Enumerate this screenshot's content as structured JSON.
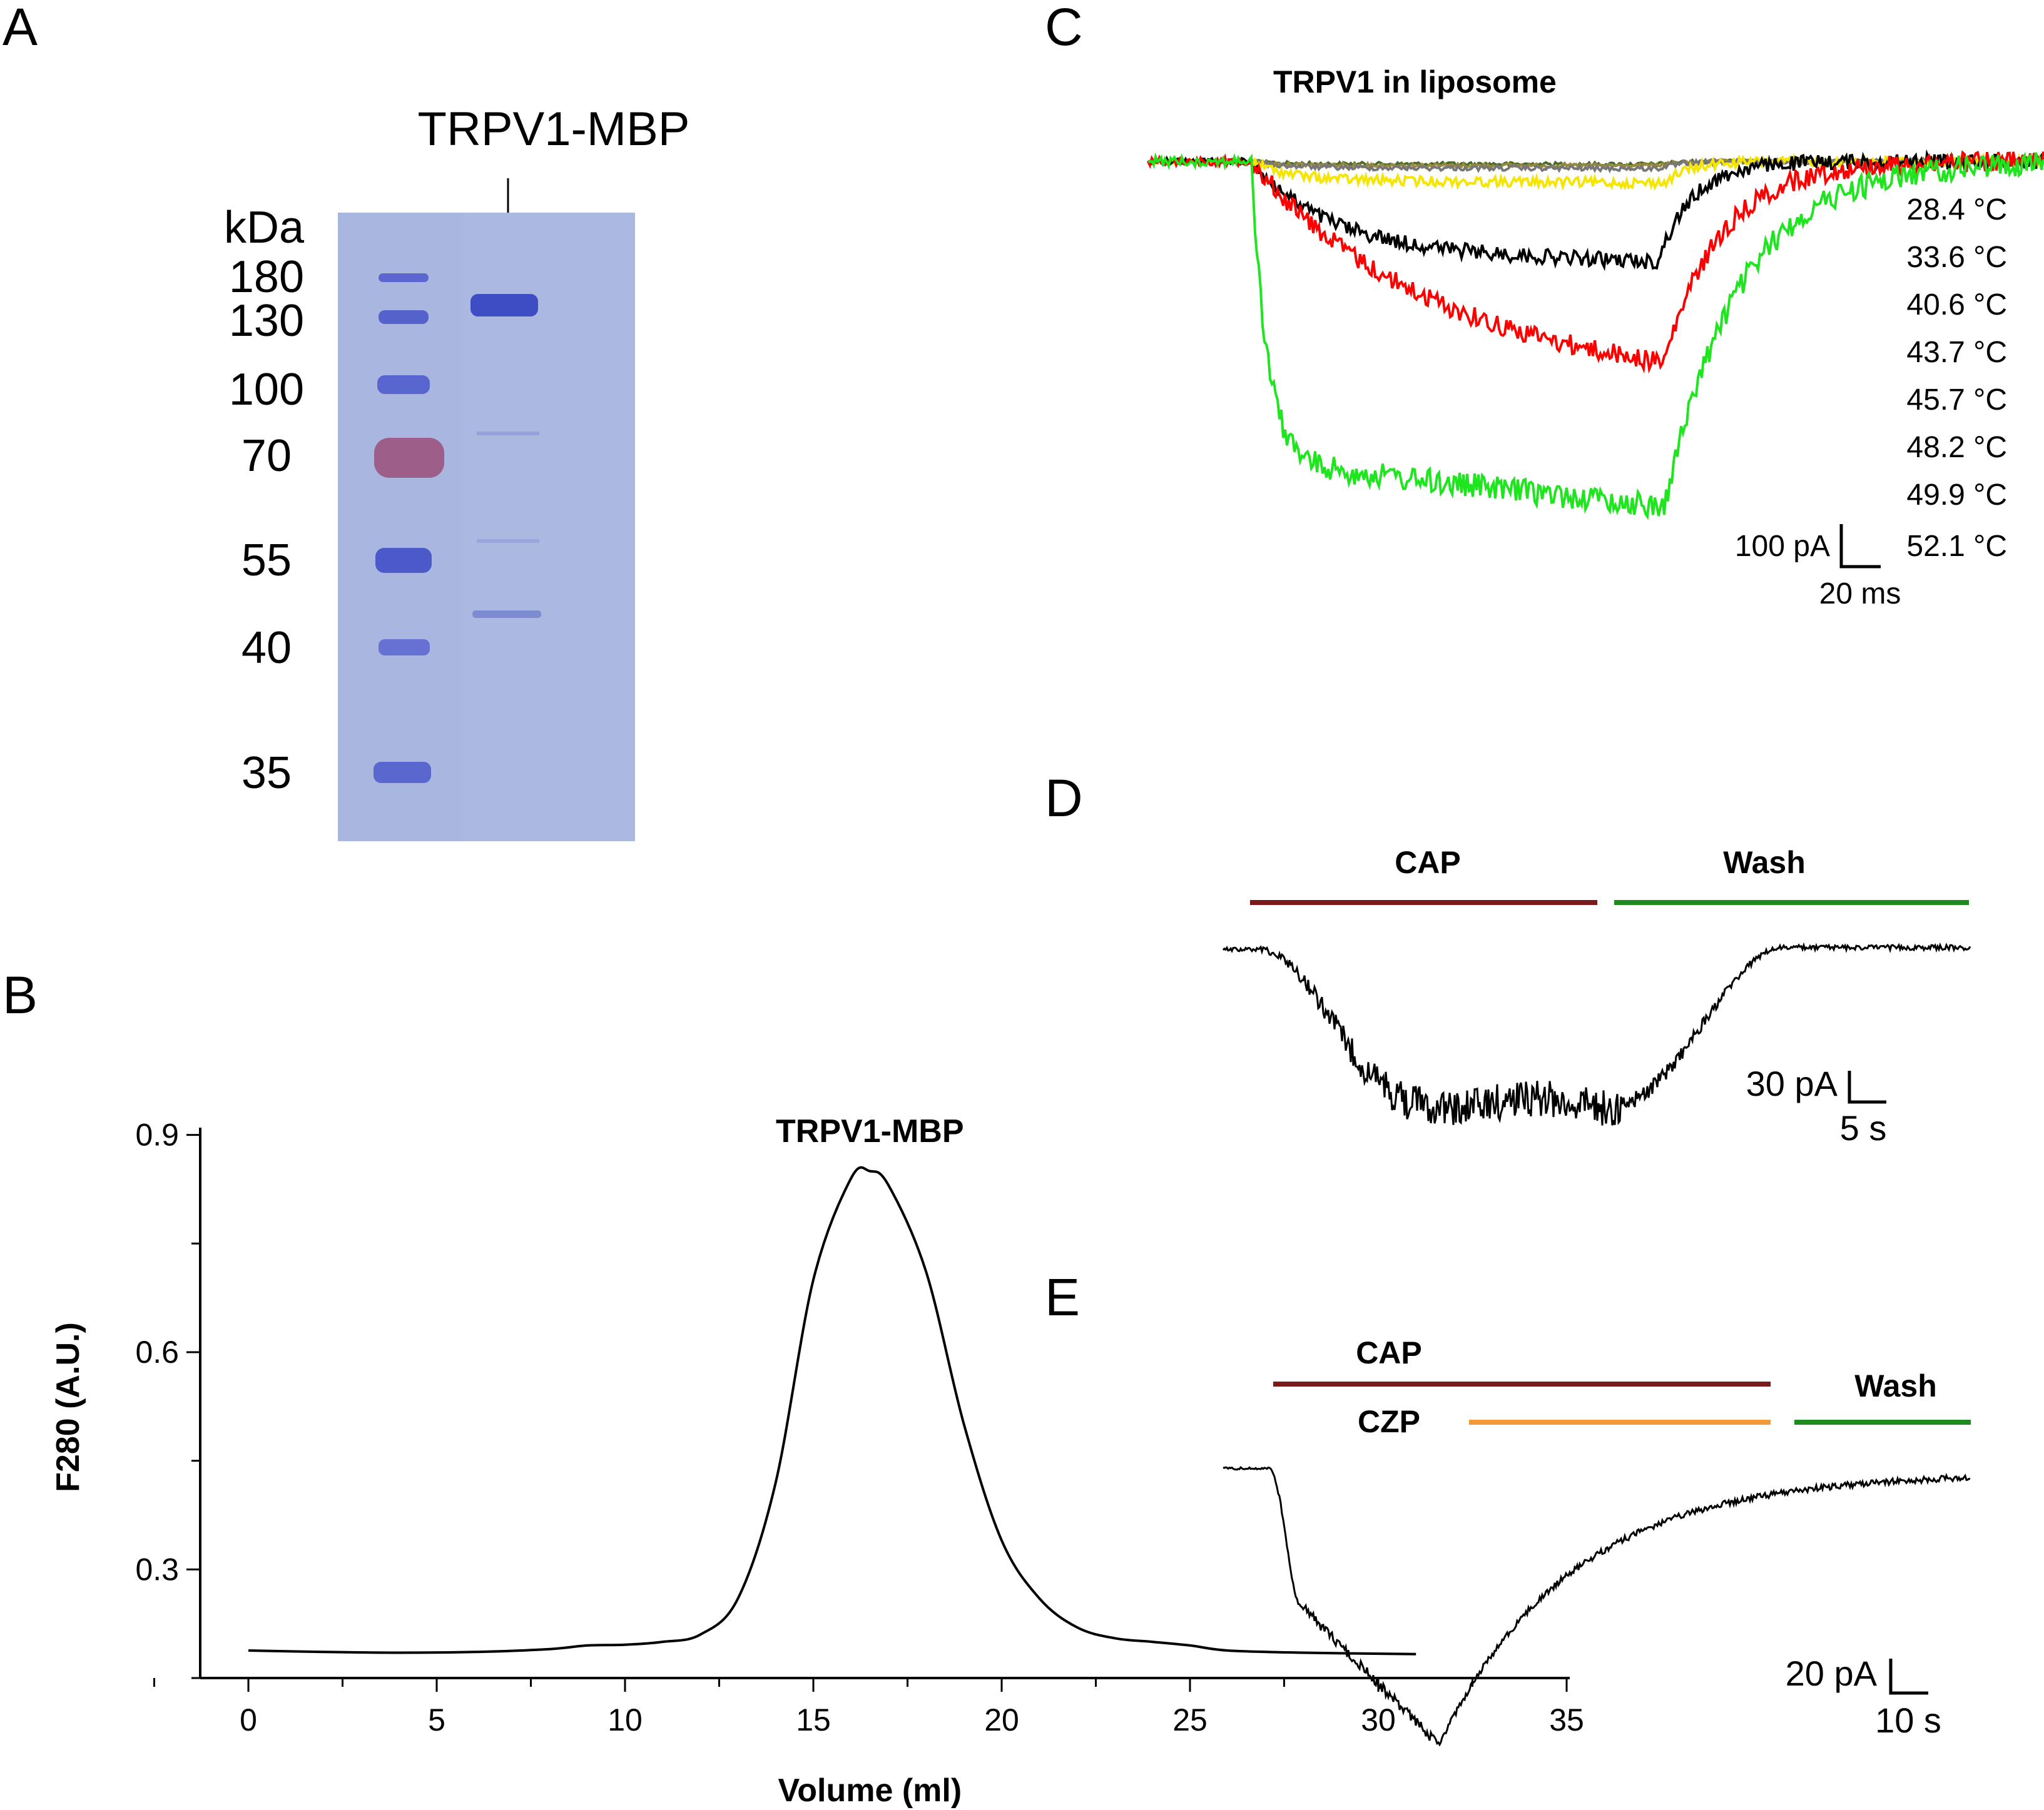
{
  "panels": {
    "a": {
      "letter": "A",
      "title": "TRPV1-MBP",
      "unit": "kDa",
      "markers": [
        "180",
        "130",
        "100",
        "70",
        "55",
        "40",
        "35"
      ]
    },
    "b": {
      "letter": "B"
    },
    "c": {
      "letter": "C",
      "title": "TRPV1 in liposome",
      "temperatures": [
        "28.4 °C",
        "33.6 °C",
        "40.6 °C",
        "43.7 °C",
        "45.7 °C",
        "48.2 °C",
        "49.9 °C",
        "52.1 °C"
      ],
      "scale_y": "100 pA",
      "scale_x": "20 ms"
    },
    "d": {
      "letter": "D",
      "bar1": "CAP",
      "bar2": "Wash",
      "scale_y": "30 pA",
      "scale_x": "5 s"
    },
    "e": {
      "letter": "E",
      "bar1": "CAP",
      "bar2": "CZP",
      "bar3": "Wash",
      "scale_y": "20 pA",
      "scale_x": "10 s"
    }
  },
  "colors": {
    "cap": "#7a1a1a",
    "wash": "#1f8a1f",
    "czp": "#f39a36",
    "gel": "#a9b6df",
    "band": "#4c59c8",
    "band70": "#9b4f7a",
    "trace": "#000000"
  },
  "chart_data": [
    {
      "type": "line",
      "title": "TRPV1-MBP",
      "xlabel": "Volume (ml)",
      "ylabel": "F280 (A.U.)",
      "xlim": [
        -2.5,
        35
      ],
      "ylim": [
        0.15,
        0.91
      ],
      "xticks": [
        0,
        5,
        10,
        15,
        20,
        25,
        30,
        35
      ],
      "xtick_labels": [
        "0",
        "5",
        "10",
        "15",
        "20",
        "25",
        "30",
        "35"
      ],
      "yticks": [
        0.3,
        0.6,
        0.9
      ],
      "ytick_labels": [
        "0.3",
        "0.6",
        "0.9"
      ],
      "series": [
        {
          "name": "TRPV1-MBP",
          "x": [
            0,
            2,
            4,
            6,
            8,
            9,
            10,
            11,
            12,
            13,
            14,
            15,
            16,
            16.5,
            17,
            18,
            19,
            20,
            21,
            22,
            23,
            24,
            25,
            26,
            28,
            31
          ],
          "y": [
            0.188,
            0.186,
            0.185,
            0.186,
            0.19,
            0.195,
            0.196,
            0.2,
            0.21,
            0.26,
            0.42,
            0.7,
            0.84,
            0.85,
            0.83,
            0.71,
            0.5,
            0.34,
            0.26,
            0.22,
            0.205,
            0.2,
            0.195,
            0.188,
            0.185,
            0.183
          ]
        }
      ]
    }
  ]
}
